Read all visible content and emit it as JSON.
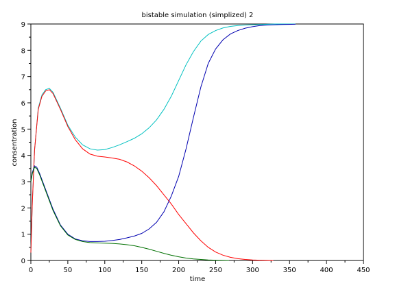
{
  "chart_data": {
    "type": "line",
    "title": "bistable simulation (simplized) 2",
    "xlabel": "time",
    "ylabel": "consentration",
    "xlim": [
      0,
      450
    ],
    "ylim": [
      0,
      9
    ],
    "xticks": [
      0,
      50,
      100,
      150,
      200,
      250,
      300,
      350,
      400,
      450
    ],
    "yticks": [
      0,
      1,
      2,
      3,
      4,
      5,
      6,
      7,
      8,
      9
    ],
    "grid": false,
    "legend": "none",
    "series": [
      {
        "color": "#00c0c0",
        "points": [
          [
            0,
            0.3
          ],
          [
            2,
            2.2
          ],
          [
            5,
            4.2
          ],
          [
            10,
            5.8
          ],
          [
            15,
            6.3
          ],
          [
            20,
            6.5
          ],
          [
            25,
            6.55
          ],
          [
            30,
            6.4
          ],
          [
            40,
            5.8
          ],
          [
            50,
            5.15
          ],
          [
            60,
            4.7
          ],
          [
            70,
            4.4
          ],
          [
            80,
            4.25
          ],
          [
            90,
            4.2
          ],
          [
            100,
            4.22
          ],
          [
            110,
            4.3
          ],
          [
            120,
            4.4
          ],
          [
            130,
            4.52
          ],
          [
            140,
            4.65
          ],
          [
            150,
            4.82
          ],
          [
            160,
            5.05
          ],
          [
            170,
            5.35
          ],
          [
            180,
            5.75
          ],
          [
            190,
            6.25
          ],
          [
            200,
            6.85
          ],
          [
            210,
            7.45
          ],
          [
            220,
            7.95
          ],
          [
            230,
            8.35
          ],
          [
            240,
            8.6
          ],
          [
            250,
            8.75
          ],
          [
            260,
            8.85
          ],
          [
            270,
            8.91
          ],
          [
            280,
            8.94
          ],
          [
            290,
            8.96
          ],
          [
            300,
            8.97
          ],
          [
            310,
            8.98
          ],
          [
            320,
            8.99
          ],
          [
            330,
            9.0
          ],
          [
            340,
            9.0
          ],
          [
            358,
            9.0
          ]
        ]
      },
      {
        "color": "#ff0000",
        "points": [
          [
            0,
            0.3
          ],
          [
            2,
            2.2
          ],
          [
            5,
            4.2
          ],
          [
            10,
            5.75
          ],
          [
            15,
            6.25
          ],
          [
            20,
            6.45
          ],
          [
            25,
            6.5
          ],
          [
            30,
            6.35
          ],
          [
            40,
            5.75
          ],
          [
            50,
            5.1
          ],
          [
            60,
            4.6
          ],
          [
            70,
            4.25
          ],
          [
            80,
            4.05
          ],
          [
            90,
            3.97
          ],
          [
            100,
            3.94
          ],
          [
            110,
            3.9
          ],
          [
            120,
            3.85
          ],
          [
            130,
            3.75
          ],
          [
            140,
            3.6
          ],
          [
            150,
            3.4
          ],
          [
            160,
            3.15
          ],
          [
            170,
            2.85
          ],
          [
            180,
            2.5
          ],
          [
            190,
            2.15
          ],
          [
            200,
            1.75
          ],
          [
            210,
            1.4
          ],
          [
            220,
            1.05
          ],
          [
            230,
            0.75
          ],
          [
            240,
            0.5
          ],
          [
            250,
            0.32
          ],
          [
            260,
            0.2
          ],
          [
            270,
            0.12
          ],
          [
            280,
            0.07
          ],
          [
            290,
            0.04
          ],
          [
            300,
            0.02
          ],
          [
            310,
            0.01
          ],
          [
            328,
            0.0
          ]
        ]
      },
      {
        "color": "#0000b0",
        "points": [
          [
            0,
            3.0
          ],
          [
            2,
            3.35
          ],
          [
            5,
            3.6
          ],
          [
            8,
            3.55
          ],
          [
            12,
            3.3
          ],
          [
            20,
            2.7
          ],
          [
            30,
            1.95
          ],
          [
            40,
            1.35
          ],
          [
            50,
            1.0
          ],
          [
            60,
            0.82
          ],
          [
            70,
            0.75
          ],
          [
            80,
            0.72
          ],
          [
            90,
            0.72
          ],
          [
            100,
            0.73
          ],
          [
            110,
            0.76
          ],
          [
            120,
            0.8
          ],
          [
            130,
            0.86
          ],
          [
            140,
            0.93
          ],
          [
            150,
            1.03
          ],
          [
            160,
            1.2
          ],
          [
            170,
            1.45
          ],
          [
            180,
            1.85
          ],
          [
            190,
            2.45
          ],
          [
            200,
            3.2
          ],
          [
            210,
            4.25
          ],
          [
            220,
            5.45
          ],
          [
            230,
            6.6
          ],
          [
            240,
            7.5
          ],
          [
            250,
            8.05
          ],
          [
            260,
            8.4
          ],
          [
            270,
            8.62
          ],
          [
            280,
            8.75
          ],
          [
            290,
            8.84
          ],
          [
            300,
            8.9
          ],
          [
            310,
            8.94
          ],
          [
            320,
            8.96
          ],
          [
            330,
            8.97
          ],
          [
            340,
            8.98
          ],
          [
            358,
            8.99
          ]
        ]
      },
      {
        "color": "#007000",
        "points": [
          [
            0,
            3.0
          ],
          [
            2,
            3.3
          ],
          [
            5,
            3.55
          ],
          [
            8,
            3.5
          ],
          [
            12,
            3.25
          ],
          [
            20,
            2.65
          ],
          [
            30,
            1.9
          ],
          [
            40,
            1.32
          ],
          [
            50,
            0.97
          ],
          [
            60,
            0.8
          ],
          [
            70,
            0.72
          ],
          [
            80,
            0.68
          ],
          [
            90,
            0.67
          ],
          [
            100,
            0.66
          ],
          [
            110,
            0.65
          ],
          [
            120,
            0.63
          ],
          [
            130,
            0.6
          ],
          [
            140,
            0.56
          ],
          [
            150,
            0.5
          ],
          [
            160,
            0.43
          ],
          [
            170,
            0.35
          ],
          [
            180,
            0.27
          ],
          [
            190,
            0.2
          ],
          [
            200,
            0.14
          ],
          [
            210,
            0.09
          ],
          [
            220,
            0.06
          ],
          [
            230,
            0.04
          ],
          [
            240,
            0.02
          ],
          [
            250,
            0.01
          ],
          [
            268,
            0.0
          ]
        ]
      }
    ]
  }
}
